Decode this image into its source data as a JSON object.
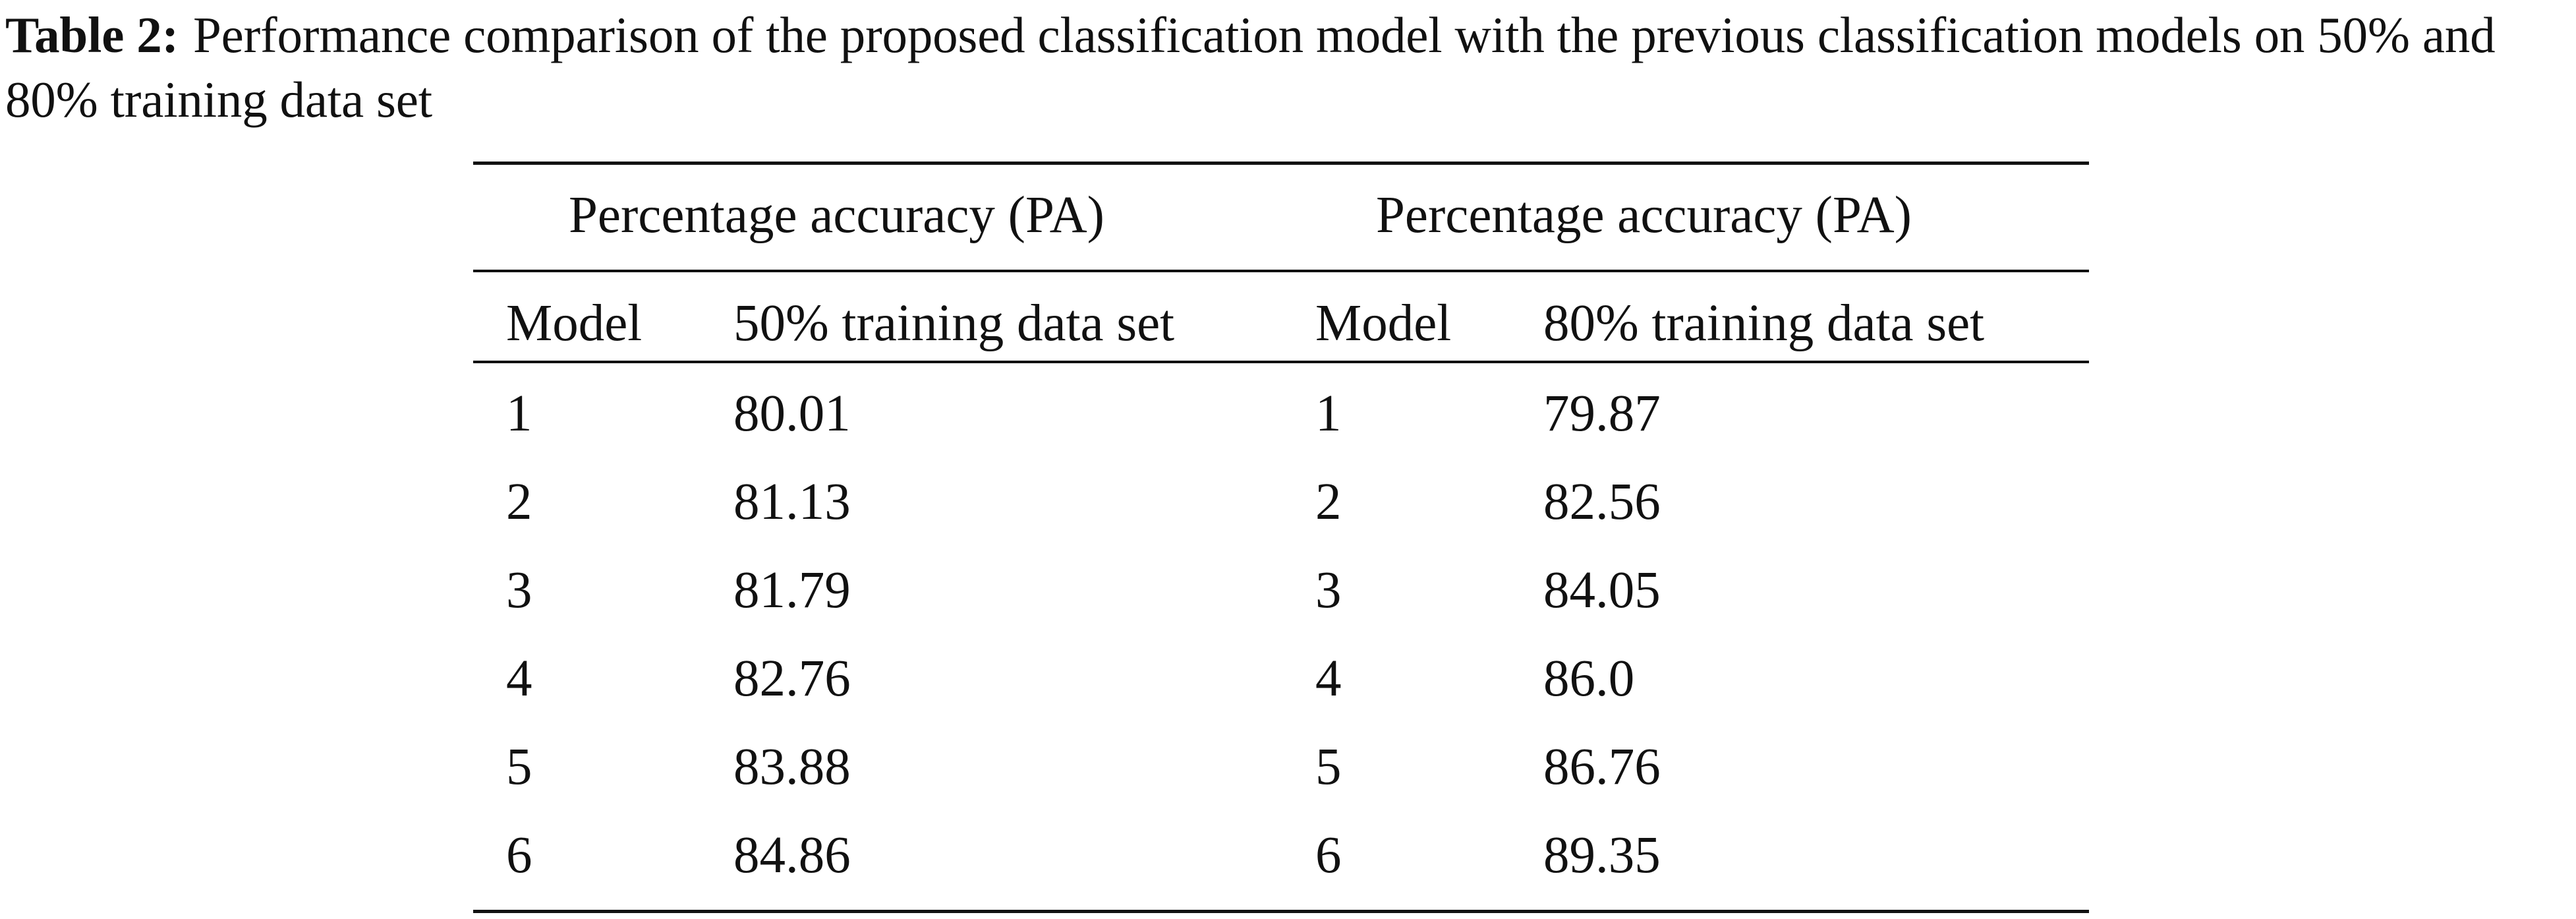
{
  "caption": {
    "label": "Table 2:",
    "text": "Performance comparison of the proposed classification model with the previous classification models on 50% and 80% training data set"
  },
  "table": {
    "group_headers": [
      "Percentage accuracy (PA)",
      "Percentage accuracy (PA)"
    ],
    "column_headers": [
      "Model",
      "50% training data set",
      "Model",
      "80% training data set"
    ],
    "rows": [
      [
        "1",
        "80.01",
        "1",
        "79.87"
      ],
      [
        "2",
        "81.13",
        "2",
        "82.56"
      ],
      [
        "3",
        "81.79",
        "3",
        "84.05"
      ],
      [
        "4",
        "82.76",
        "4",
        "86.0"
      ],
      [
        "5",
        "83.88",
        "5",
        "86.76"
      ],
      [
        "6",
        "84.86",
        "6",
        "89.35"
      ]
    ]
  }
}
